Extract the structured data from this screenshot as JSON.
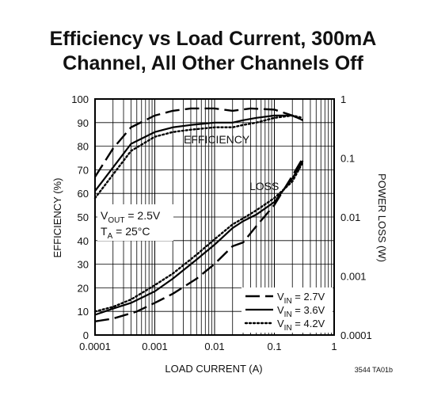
{
  "chart_data": {
    "type": "line",
    "title_lines": [
      "Efficiency vs Load Current, 300mA",
      "Channel, All Other Channels Off"
    ],
    "xlabel": "LOAD CURRENT (A)",
    "ylabel_left": "EFFICIENCY (%)",
    "ylabel_right": "POWER LOSS (W)",
    "x_scale": "log",
    "xlim": [
      0.0001,
      1
    ],
    "ylim_left": [
      0,
      100
    ],
    "y_right_scale": "log",
    "ylim_right": [
      0.0001,
      1
    ],
    "x_ticks": [
      "0.0001",
      "0.001",
      "0.01",
      "0.1",
      "1"
    ],
    "y_left_ticks": [
      "0",
      "10",
      "20",
      "30",
      "40",
      "50",
      "60",
      "70",
      "80",
      "90",
      "100"
    ],
    "y_right_ticks": [
      "0.0001",
      "0.001",
      "0.01",
      "0.1",
      "1"
    ],
    "grid": true,
    "annotations": {
      "efficiency": "EFFICIENCY",
      "loss": "LOSS",
      "conditions": [
        {
          "main": "V",
          "sub": "OUT",
          "rest": " = 2.5V"
        },
        {
          "main": "T",
          "sub": "A",
          "rest": " = 25°C"
        }
      ],
      "code": "3544 TA01b"
    },
    "legend": {
      "position": "bottom-right",
      "entries": [
        {
          "main": "V",
          "sub": "IN",
          "rest": " = 2.7V",
          "dash": "long-dash"
        },
        {
          "main": "V",
          "sub": "IN",
          "rest": " = 3.6V",
          "dash": "solid"
        },
        {
          "main": "V",
          "sub": "IN",
          "rest": " = 4.2V",
          "dash": "dotted"
        }
      ]
    },
    "series": [
      {
        "group": "efficiency",
        "axis": "left",
        "dash": "long-dash",
        "x": [
          0.0001,
          0.0002,
          0.0004,
          0.001,
          0.002,
          0.004,
          0.01,
          0.02,
          0.04,
          0.1,
          0.2,
          0.3
        ],
        "y": [
          67,
          79,
          88,
          93,
          95,
          96,
          96,
          95,
          96,
          95.5,
          93,
          91
        ]
      },
      {
        "group": "efficiency",
        "axis": "left",
        "dash": "solid",
        "x": [
          0.0001,
          0.0002,
          0.0004,
          0.001,
          0.002,
          0.004,
          0.01,
          0.02,
          0.03,
          0.05,
          0.1,
          0.2,
          0.3
        ],
        "y": [
          61,
          71,
          81,
          86,
          88,
          89,
          90,
          90,
          91,
          92,
          93,
          93,
          91
        ]
      },
      {
        "group": "efficiency",
        "axis": "left",
        "dash": "dotted",
        "x": [
          0.0001,
          0.0002,
          0.0004,
          0.001,
          0.002,
          0.004,
          0.01,
          0.02,
          0.03,
          0.05,
          0.1,
          0.2,
          0.3
        ],
        "y": [
          58,
          68,
          78,
          84,
          86,
          87,
          88,
          88,
          89,
          90,
          92,
          93,
          92
        ]
      },
      {
        "group": "loss",
        "axis": "right",
        "dash": "long-dash",
        "x": [
          0.0001,
          0.0002,
          0.0005,
          0.001,
          0.002,
          0.005,
          0.01,
          0.02,
          0.03,
          0.05,
          0.1,
          0.2,
          0.3
        ],
        "y": [
          0.00017,
          0.00019,
          0.00025,
          0.00035,
          0.0005,
          0.0009,
          0.0016,
          0.0032,
          0.0037,
          0.007,
          0.016,
          0.05,
          0.1
        ]
      },
      {
        "group": "loss",
        "axis": "right",
        "dash": "solid",
        "x": [
          0.0001,
          0.0002,
          0.0004,
          0.001,
          0.002,
          0.005,
          0.01,
          0.02,
          0.03,
          0.05,
          0.1,
          0.2,
          0.3
        ],
        "y": [
          0.00022,
          0.00028,
          0.00035,
          0.00055,
          0.0009,
          0.0019,
          0.0034,
          0.0065,
          0.0085,
          0.011,
          0.018,
          0.045,
          0.09
        ]
      },
      {
        "group": "loss",
        "axis": "right",
        "dash": "dotted",
        "x": [
          0.0001,
          0.0002,
          0.0004,
          0.001,
          0.002,
          0.005,
          0.01,
          0.02,
          0.03,
          0.05,
          0.1,
          0.2,
          0.3
        ],
        "y": [
          0.00025,
          0.0003,
          0.0004,
          0.0007,
          0.0011,
          0.0023,
          0.0042,
          0.0075,
          0.0095,
          0.013,
          0.021,
          0.04,
          0.085
        ]
      }
    ]
  }
}
